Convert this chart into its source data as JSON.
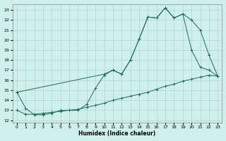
{
  "xlabel": "Humidex (Indice chaleur)",
  "background_color": "#cff0ea",
  "grid_color": "#aed4ce",
  "line_color": "#1a6b5a",
  "xlim": [
    -0.5,
    23.5
  ],
  "ylim": [
    11.8,
    23.6
  ],
  "yticks": [
    12,
    13,
    14,
    15,
    16,
    17,
    18,
    19,
    20,
    21,
    22,
    23
  ],
  "xticks": [
    0,
    1,
    2,
    3,
    4,
    5,
    6,
    7,
    8,
    9,
    10,
    11,
    12,
    13,
    14,
    15,
    16,
    17,
    18,
    19,
    20,
    21,
    22,
    23
  ],
  "line1_x": [
    0,
    1,
    2,
    3,
    4,
    5,
    6,
    7,
    8,
    9,
    10,
    11,
    12,
    13,
    14,
    15,
    16,
    17,
    18,
    19,
    20,
    21,
    22,
    23
  ],
  "line1_y": [
    14.8,
    13.2,
    12.55,
    12.55,
    12.7,
    13.0,
    13.0,
    13.0,
    13.6,
    15.2,
    16.5,
    17.0,
    16.6,
    18.0,
    20.1,
    22.3,
    22.2,
    23.2,
    22.2,
    22.6,
    22.0,
    21.0,
    18.5,
    16.4
  ],
  "line2_x": [
    0,
    10,
    11,
    12,
    13,
    14,
    15,
    16,
    17,
    18,
    19,
    20,
    21,
    22,
    23
  ],
  "line2_y": [
    14.8,
    16.6,
    17.0,
    16.6,
    18.0,
    20.1,
    22.3,
    22.2,
    23.2,
    22.2,
    22.6,
    19.0,
    17.3,
    17.0,
    16.4
  ],
  "line3_x": [
    0,
    1,
    2,
    3,
    4,
    5,
    6,
    7,
    8,
    9,
    10,
    11,
    12,
    13,
    14,
    15,
    16,
    17,
    18,
    19,
    20,
    21,
    22,
    23
  ],
  "line3_y": [
    13.0,
    12.6,
    12.6,
    12.7,
    12.8,
    12.9,
    13.0,
    13.1,
    13.3,
    13.5,
    13.7,
    14.0,
    14.2,
    14.4,
    14.6,
    14.8,
    15.1,
    15.4,
    15.6,
    15.9,
    16.1,
    16.3,
    16.5,
    16.4
  ]
}
